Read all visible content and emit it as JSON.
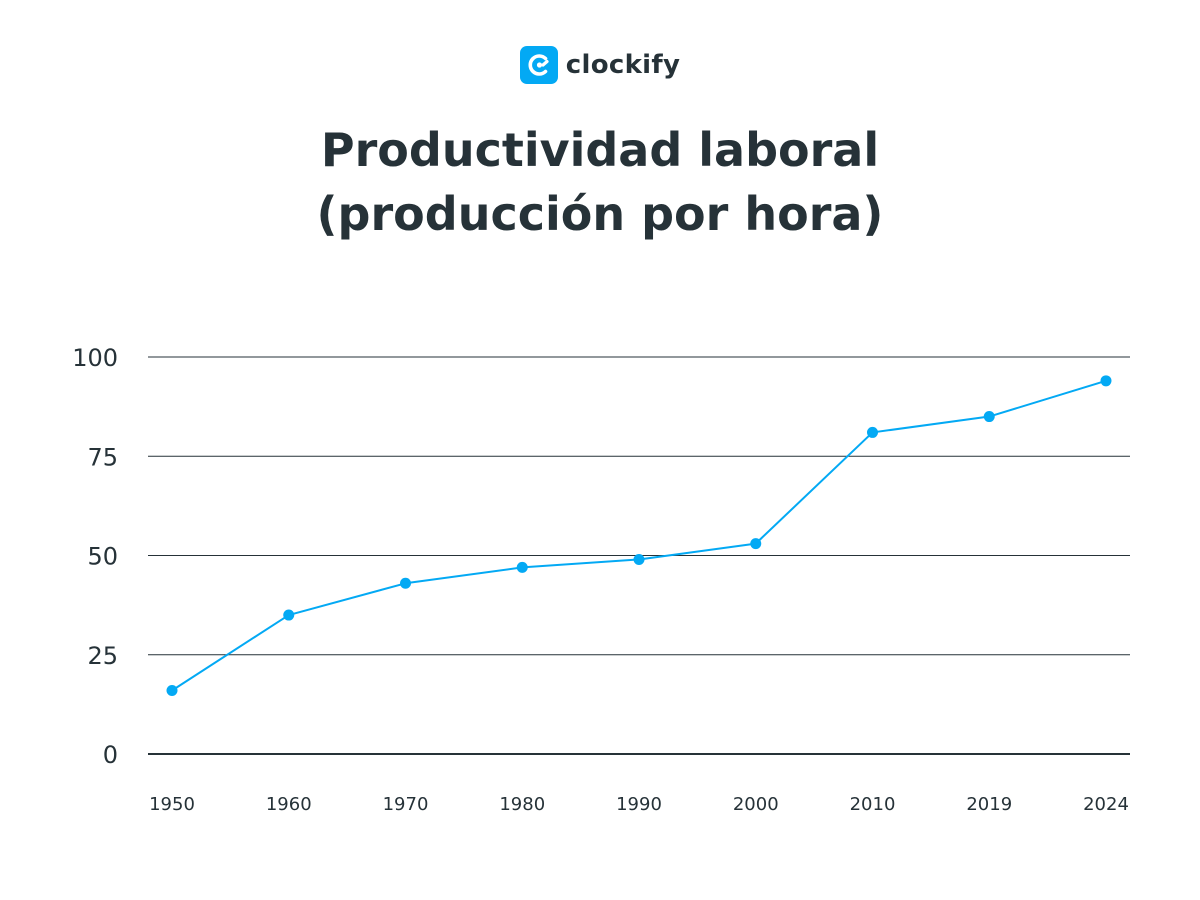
{
  "brand": {
    "name": "clockify",
    "accent": "#03A9F4"
  },
  "chart_data": {
    "type": "line",
    "title_lines": [
      "Productividad laboral",
      "(producción por hora)"
    ],
    "categories": [
      "1950",
      "1960",
      "1970",
      "1980",
      "1990",
      "2000",
      "2010",
      "2019",
      "2024"
    ],
    "series": [
      {
        "values": [
          16,
          35,
          43,
          47,
          49,
          53,
          81,
          85,
          94
        ],
        "color": "#03A9F4"
      }
    ],
    "y_ticks": [
      "0",
      "25",
      "50",
      "75",
      "100"
    ],
    "ylim": [
      0,
      100
    ],
    "grid": true,
    "colors": {
      "grid": "#263238",
      "text": "#263238"
    }
  }
}
